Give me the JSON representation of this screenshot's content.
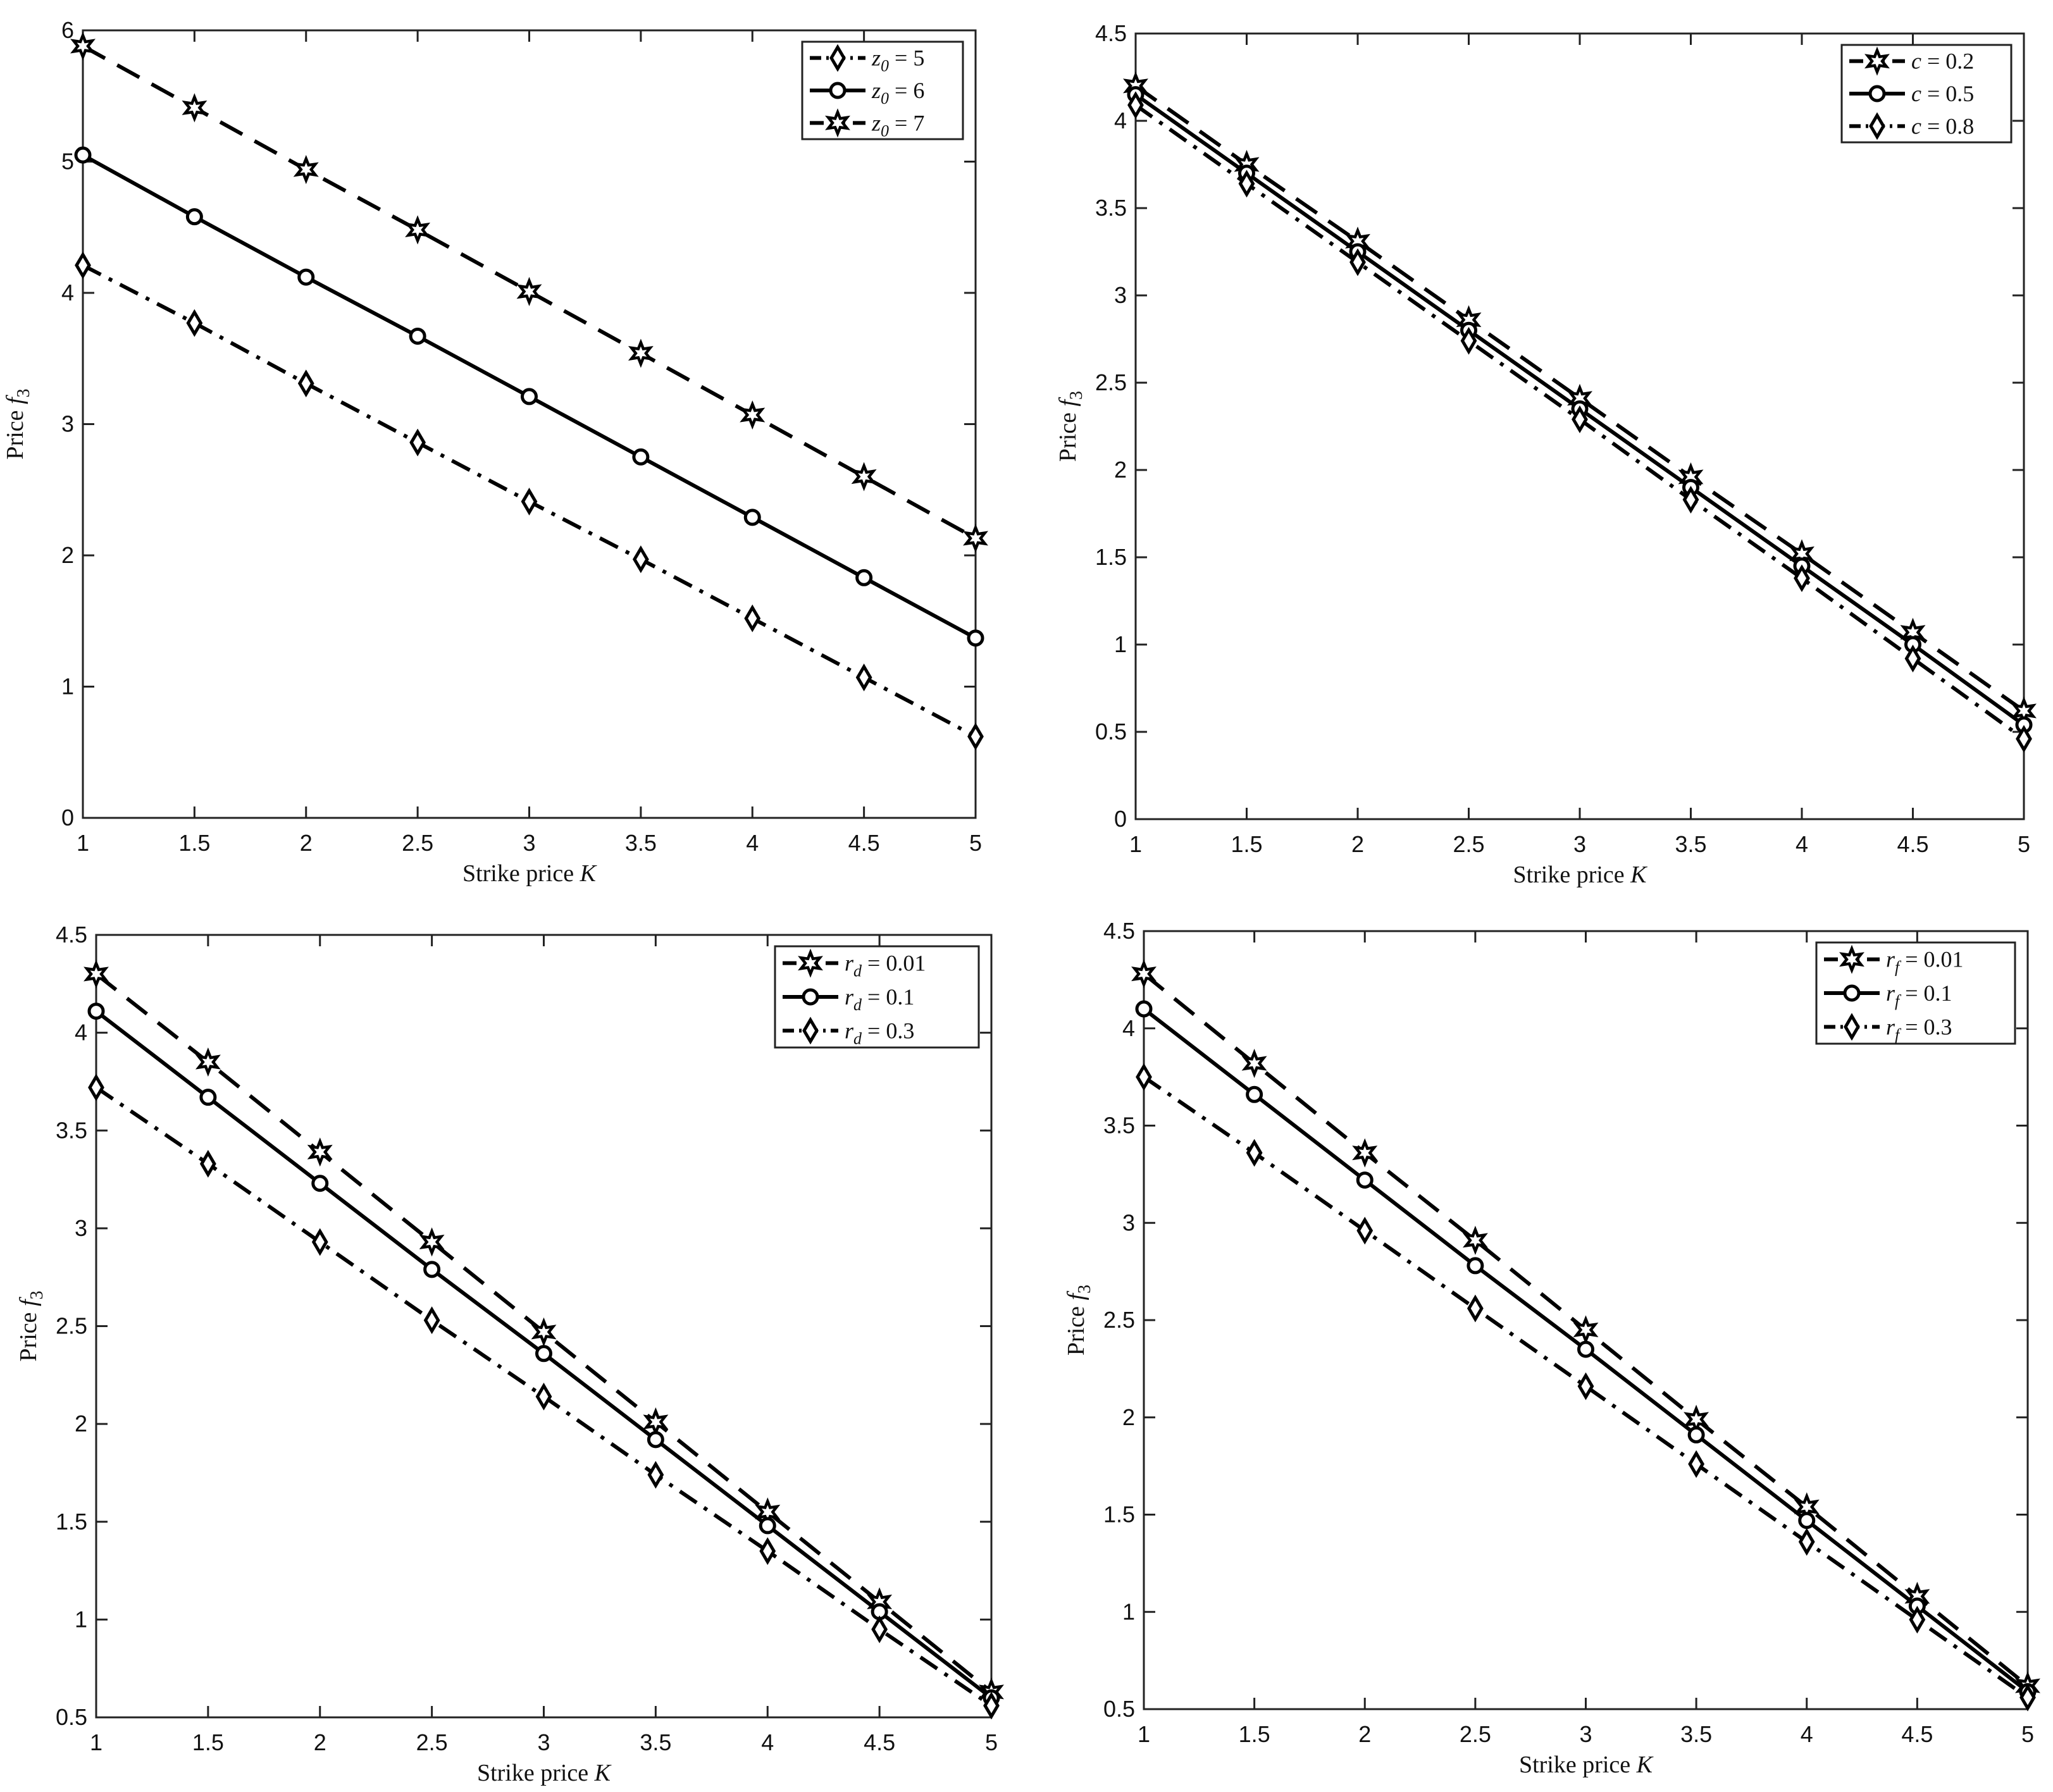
{
  "chart_data": [
    {
      "type": "line",
      "xlabel": "Strike price K",
      "ylabel": "Price f3",
      "x": [
        1,
        1.5,
        2,
        2.5,
        3,
        3.5,
        4,
        4.5,
        5
      ],
      "xlim": [
        1,
        5
      ],
      "ylim": [
        0,
        6
      ],
      "xticks": [
        "1",
        "1.5",
        "2",
        "2.5",
        "3",
        "3.5",
        "4",
        "4.5",
        "5"
      ],
      "yticks": [
        "0",
        "1",
        "2",
        "3",
        "4",
        "5",
        "6"
      ],
      "legend_position": "top-right",
      "grid": false,
      "series": [
        {
          "name": "z0 = 5",
          "dash": "dashdot",
          "marker": "diamond",
          "values": [
            4.21,
            3.77,
            3.31,
            2.86,
            2.41,
            1.97,
            1.52,
            1.07,
            0.62
          ]
        },
        {
          "name": "z0 = 6",
          "dash": "solid",
          "marker": "circle",
          "values": [
            5.05,
            4.58,
            4.12,
            3.67,
            3.21,
            2.75,
            2.29,
            1.83,
            1.37
          ]
        },
        {
          "name": "z0 = 7",
          "dash": "dashed",
          "marker": "star",
          "values": [
            5.88,
            5.41,
            4.94,
            4.48,
            4.01,
            3.54,
            3.07,
            2.6,
            2.13
          ]
        }
      ]
    },
    {
      "type": "line",
      "xlabel": "Strike price K",
      "ylabel": "Price f3",
      "x": [
        1,
        1.5,
        2,
        2.5,
        3,
        3.5,
        4,
        4.5,
        5
      ],
      "xlim": [
        1,
        5
      ],
      "ylim": [
        0,
        4.5
      ],
      "xticks": [
        "1",
        "1.5",
        "2",
        "2.5",
        "3",
        "3.5",
        "4",
        "4.5",
        "5"
      ],
      "yticks": [
        "0",
        "0.5",
        "1",
        "1.5",
        "2",
        "2.5",
        "3",
        "3.5",
        "4",
        "4.5"
      ],
      "legend_position": "top-right",
      "grid": false,
      "series": [
        {
          "name": "c = 0.2",
          "dash": "dashed",
          "marker": "star",
          "values": [
            4.2,
            3.75,
            3.31,
            2.86,
            2.41,
            1.96,
            1.52,
            1.07,
            0.62
          ]
        },
        {
          "name": "c = 0.5",
          "dash": "solid",
          "marker": "circle",
          "values": [
            4.15,
            3.7,
            3.25,
            2.8,
            2.35,
            1.9,
            1.45,
            1.0,
            0.54
          ]
        },
        {
          "name": "c = 0.8",
          "dash": "dashdot",
          "marker": "diamond",
          "values": [
            4.09,
            3.64,
            3.19,
            2.74,
            2.29,
            1.83,
            1.38,
            0.92,
            0.46
          ]
        }
      ]
    },
    {
      "type": "line",
      "xlabel": "Strike price K",
      "ylabel": "Price f3",
      "x": [
        1,
        1.5,
        2,
        2.5,
        3,
        3.5,
        4,
        4.5,
        5
      ],
      "xlim": [
        1,
        5
      ],
      "ylim": [
        0.5,
        4.5
      ],
      "xticks": [
        "1",
        "1.5",
        "2",
        "2.5",
        "3",
        "3.5",
        "4",
        "4.5",
        "5"
      ],
      "yticks": [
        "0.5",
        "1",
        "1.5",
        "2",
        "2.5",
        "3",
        "3.5",
        "4",
        "4.5"
      ],
      "legend_position": "top-right",
      "grid": false,
      "series": [
        {
          "name": "rd = 0.01",
          "dash": "dashed",
          "marker": "star",
          "values": [
            4.3,
            3.85,
            3.39,
            2.93,
            2.47,
            2.01,
            1.55,
            1.09,
            0.63
          ]
        },
        {
          "name": "rd = 0.1",
          "dash": "solid",
          "marker": "circle",
          "values": [
            4.11,
            3.67,
            3.23,
            2.79,
            2.36,
            1.92,
            1.48,
            1.04,
            0.6
          ]
        },
        {
          "name": "rd = 0.3",
          "dash": "dashdot",
          "marker": "diamond",
          "values": [
            3.72,
            3.33,
            2.93,
            2.53,
            2.14,
            1.74,
            1.35,
            0.95,
            0.56
          ]
        }
      ]
    },
    {
      "type": "line",
      "xlabel": "Strike price K",
      "ylabel": "Price f3",
      "x": [
        1,
        1.5,
        2,
        2.5,
        3,
        3.5,
        4,
        4.5,
        5
      ],
      "xlim": [
        1,
        5
      ],
      "ylim": [
        0.5,
        4.5
      ],
      "xticks": [
        "1",
        "1.5",
        "2",
        "2.5",
        "3",
        "3.5",
        "4",
        "4.5",
        "5"
      ],
      "yticks": [
        "0.5",
        "1",
        "1.5",
        "2",
        "2.5",
        "3",
        "3.5",
        "4",
        "4.5"
      ],
      "legend_position": "top-right",
      "grid": false,
      "series": [
        {
          "name": "rf = 0.01",
          "dash": "dashed",
          "marker": "star",
          "values": [
            4.28,
            3.82,
            3.36,
            2.91,
            2.45,
            1.99,
            1.54,
            1.08,
            0.62
          ]
        },
        {
          "name": "rf = 0.1",
          "dash": "solid",
          "marker": "circle",
          "values": [
            4.1,
            3.66,
            3.22,
            2.78,
            2.35,
            1.91,
            1.47,
            1.03,
            0.59
          ]
        },
        {
          "name": "rf = 0.3",
          "dash": "dashdot",
          "marker": "diamond",
          "values": [
            3.75,
            3.36,
            2.96,
            2.56,
            2.16,
            1.76,
            1.36,
            0.96,
            0.56
          ]
        }
      ]
    }
  ]
}
